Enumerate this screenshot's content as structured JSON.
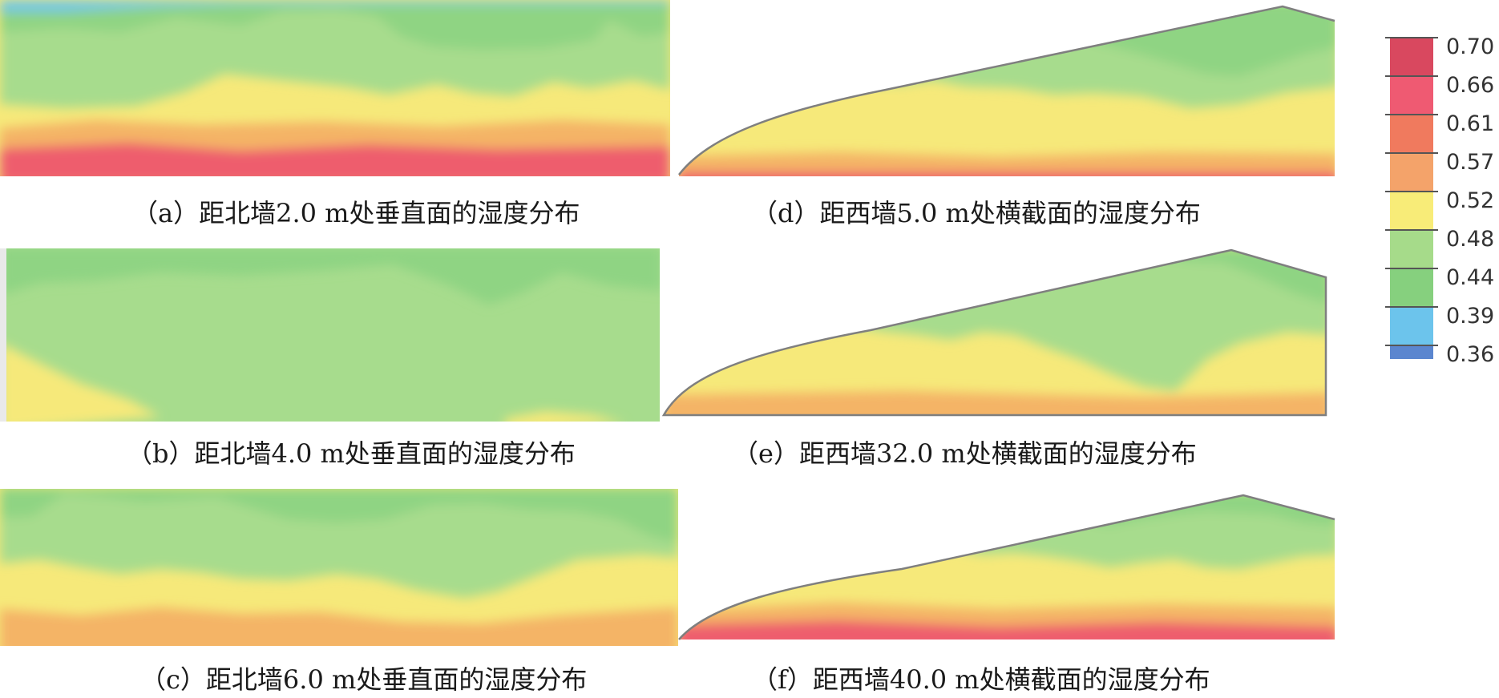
{
  "figure": {
    "panels": [
      {
        "id": "a",
        "caption": "（a）距北墙2.0 m处垂直面的湿度分布"
      },
      {
        "id": "b",
        "caption": "（b）距北墙4.0 m处垂直面的湿度分布"
      },
      {
        "id": "c",
        "caption": "（c）距北墙6.0 m处垂直面的湿度分布"
      },
      {
        "id": "d",
        "caption": "（d）距西墙5.0 m处横截面的湿度分布"
      },
      {
        "id": "e",
        "caption": "（e）距西墙32.0 m处横截面的湿度分布"
      },
      {
        "id": "f",
        "caption": "（f）距西墙40.0 m处横截面的湿度分布"
      }
    ]
  },
  "legend": {
    "labels": [
      "0.70",
      "0.66",
      "0.61",
      "0.57",
      "0.52",
      "0.48",
      "0.44",
      "0.39",
      "0.36"
    ],
    "colors": [
      "#d9485f",
      "#ef5a72",
      "#f07a5e",
      "#f4a36a",
      "#f8ec78",
      "#a6db8a",
      "#86d07e",
      "#6cc4ec",
      "#5b86cf"
    ]
  },
  "colors": {
    "blue": "#6fc6e8",
    "dark_green": "#8fd483",
    "light_green": "#a7dc8d",
    "yellow": "#f6e97a",
    "orange": "#f4b466",
    "red": "#ee5d6d"
  }
}
